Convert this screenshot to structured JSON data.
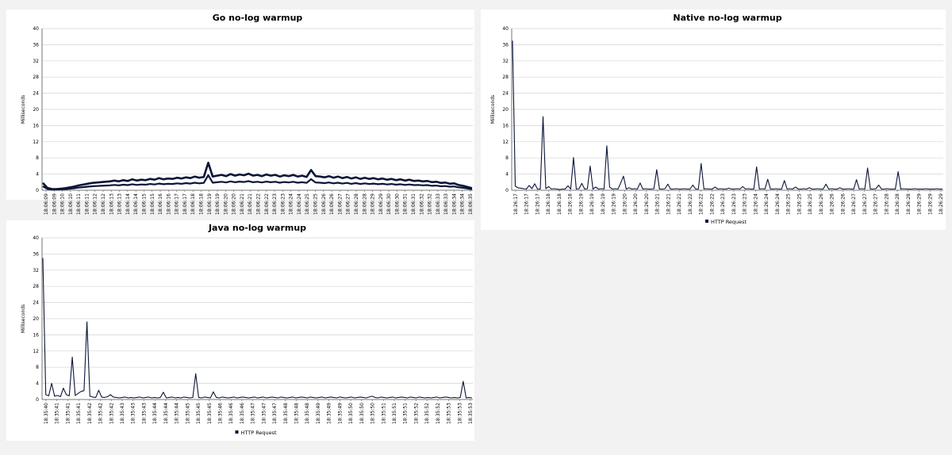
{
  "chart_data": [
    {
      "id": "go",
      "type": "line",
      "title": "Go no-log warmup",
      "ylabel": "Milliseconds",
      "ylim": [
        0,
        40
      ],
      "yticks": [
        0,
        4,
        8,
        12,
        16,
        20,
        24,
        28,
        32,
        36,
        40
      ],
      "grid": true,
      "xticks": [
        "18:06:09",
        "18:06:09",
        "18:06:10",
        "18:06:10",
        "18:06:11",
        "18:06:11",
        "18:06:12",
        "18:06:12",
        "18:06:13",
        "18:06:13",
        "18:06:14",
        "18:06:14",
        "18:06:15",
        "18:06:15",
        "18:06:16",
        "18:06:16",
        "18:06:17",
        "18:06:17",
        "18:06:18",
        "18:06:18",
        "18:06:19",
        "18:06:19",
        "18:06:20",
        "18:06:20",
        "18:06:21",
        "18:06:21",
        "18:06:22",
        "18:06:22",
        "18:06:23",
        "18:06:23",
        "18:06:24",
        "18:06:24",
        "18:06:25",
        "18:06:25",
        "18:06:26",
        "18:06:26",
        "18:06:27",
        "18:06:27",
        "18:06:28",
        "18:06:28",
        "18:06:29",
        "18:06:29",
        "18:06:30",
        "18:06:30",
        "18:06:31",
        "18:06:31",
        "18:06:32",
        "18:06:32",
        "18:06:33",
        "18:06:33",
        "18:06:34",
        "18:06:34",
        "18:06:35"
      ],
      "series": [
        {
          "name": "",
          "color": "#0b1538",
          "values": [
            1.8,
            0.6,
            0.3,
            0.3,
            0.4,
            0.5,
            0.7,
            0.9,
            1.2,
            1.4,
            1.6,
            1.8,
            1.9,
            2.0,
            2.1,
            2.2,
            2.4,
            2.2,
            2.5,
            2.3,
            2.7,
            2.4,
            2.6,
            2.5,
            2.8,
            2.6,
            3.0,
            2.7,
            2.9,
            2.8,
            3.1,
            2.9,
            3.2,
            3.0,
            3.4,
            3.1,
            3.3,
            6.8,
            3.4,
            3.6,
            3.8,
            3.5,
            4.0,
            3.6,
            3.9,
            3.7,
            4.1,
            3.6,
            3.8,
            3.5,
            3.9,
            3.6,
            3.8,
            3.4,
            3.7,
            3.5,
            3.8,
            3.4,
            3.6,
            3.3,
            5.0,
            3.5,
            3.4,
            3.2,
            3.5,
            3.1,
            3.4,
            3.0,
            3.3,
            2.9,
            3.2,
            2.8,
            3.1,
            2.8,
            3.0,
            2.7,
            2.9,
            2.6,
            2.8,
            2.5,
            2.7,
            2.4,
            2.6,
            2.3,
            2.4,
            2.2,
            2.3,
            2.0,
            2.1,
            1.8,
            1.9,
            1.6,
            1.7,
            1.3,
            1.1,
            0.8,
            0.5
          ]
        }
      ]
    },
    {
      "id": "native",
      "type": "line",
      "title": "Native no-log warmup",
      "ylabel": "Milliseconds",
      "ylim": [
        0,
        40
      ],
      "yticks": [
        0,
        4,
        8,
        12,
        16,
        20,
        24,
        28,
        32,
        36,
        40
      ],
      "grid": true,
      "legend": "HTTP Request",
      "legend_position": "bottom",
      "xticks": [
        "18:26:17",
        "18:26:17",
        "18:26:17",
        "18:26:18",
        "18:26:18",
        "18:26:18",
        "18:26:19",
        "18:26:19",
        "18:26:19",
        "18:26:19",
        "18:26:20",
        "18:26:20",
        "18:26:20",
        "18:26:21",
        "18:26:21",
        "18:26:21",
        "18:26:22",
        "18:26:22",
        "18:26:22",
        "18:26:23",
        "18:26:23",
        "18:26:23",
        "18:26:24",
        "18:26:24",
        "18:26:24",
        "18:26:25",
        "18:26:25",
        "18:26:25",
        "18:26:26",
        "18:26:26",
        "18:26:26",
        "18:26:27",
        "18:26:27",
        "18:26:27",
        "18:26:28",
        "18:26:28",
        "18:26:28",
        "18:26:29",
        "18:26:29",
        "18:26:29"
      ],
      "series": [
        {
          "name": "HTTP Request",
          "color": "#0b1538",
          "values": [
            37,
            1.0,
            0.6,
            0.5,
            0.4,
            0.3,
            1.2,
            0.4,
            1.6,
            0.3,
            0.3,
            18.2,
            0.4,
            0.9,
            0.3,
            0.4,
            0.3,
            0.2,
            0.3,
            0.3,
            1.1,
            0.3,
            8.1,
            0.3,
            0.4,
            1.7,
            0.3,
            0.4,
            6.0,
            0.3,
            0.8,
            0.3,
            0.4,
            0.3,
            11.0,
            0.8,
            0.3,
            0.4,
            0.3,
            1.8,
            3.5,
            0.3,
            0.6,
            0.3,
            0.4,
            0.3,
            1.8,
            0.3,
            0.4,
            0.3,
            0.3,
            0.4,
            5.1,
            0.3,
            0.3,
            0.4,
            1.5,
            0.3,
            0.3,
            0.4,
            0.3,
            0.3,
            0.4,
            0.3,
            0.3,
            1.3,
            0.3,
            0.3,
            6.6,
            0.3,
            0.4,
            0.3,
            0.3,
            0.8,
            0.3,
            0.4,
            0.3,
            0.3,
            0.5,
            0.3,
            0.3,
            0.4,
            0.3,
            0.9,
            0.3,
            0.4,
            0.3,
            0.3,
            5.8,
            0.3,
            0.4,
            0.3,
            2.7,
            0.3,
            0.3,
            0.4,
            0.3,
            0.3,
            2.4,
            0.3,
            0.4,
            0.3,
            0.8,
            0.3,
            0.3,
            0.4,
            0.3,
            0.6,
            0.3,
            0.3,
            0.4,
            0.3,
            0.3,
            1.5,
            0.3,
            0.4,
            0.3,
            0.3,
            0.6,
            0.3,
            0.3,
            0.4,
            0.3,
            0.3,
            2.6,
            0.3,
            0.4,
            0.3,
            5.5,
            0.3,
            0.3,
            0.4,
            1.3,
            0.3,
            0.3,
            0.4,
            0.3,
            0.3,
            0.3,
            4.6,
            0.3,
            0.4,
            0.3,
            0.3,
            0.3,
            0.4,
            0.3,
            0.3,
            0.3,
            0.4,
            0.3,
            0.3,
            0.3,
            0.4,
            0.3,
            0.3
          ]
        }
      ]
    },
    {
      "id": "java",
      "type": "line",
      "title": "Java no-log warmup",
      "ylabel": "Milliseconds",
      "ylim": [
        0,
        40
      ],
      "yticks": [
        0,
        4,
        8,
        12,
        16,
        20,
        24,
        28,
        32,
        36,
        40
      ],
      "grid": true,
      "legend": "HTTP Request",
      "legend_position": "bottom",
      "xticks": [
        "18:35:40",
        "18:35:41",
        "18:35:41",
        "18:35:41",
        "18:35:42",
        "18:35:42",
        "18:35:42",
        "18:35:43",
        "18:35:43",
        "18:35:43",
        "18:35:44",
        "18:35:44",
        "18:35:44",
        "18:35:45",
        "18:35:45",
        "18:35:45",
        "18:35:46",
        "18:35:46",
        "18:35:46",
        "18:35:47",
        "18:35:47",
        "18:35:47",
        "18:35:48",
        "18:35:48",
        "18:35:48",
        "18:35:49",
        "18:35:49",
        "18:35:49",
        "18:35:50",
        "18:35:50",
        "18:35:50",
        "18:35:51",
        "18:35:51",
        "18:35:51",
        "18:35:52",
        "18:35:52",
        "18:35:52",
        "18:35:53",
        "18:35:53",
        "18:35:53"
      ],
      "series": [
        {
          "name": "HTTP Request",
          "color": "#0b1538",
          "values": [
            35,
            1.2,
            0.9,
            4.0,
            0.8,
            1.0,
            0.7,
            2.8,
            1.2,
            0.9,
            10.5,
            1.0,
            1.5,
            2.0,
            2.2,
            19.2,
            0.8,
            0.6,
            0.5,
            2.3,
            0.6,
            0.5,
            0.7,
            1.2,
            0.6,
            0.5,
            0.4,
            0.5,
            0.6,
            0.4,
            0.5,
            0.4,
            0.5,
            0.6,
            0.4,
            0.5,
            0.6,
            0.4,
            0.5,
            0.4,
            0.5,
            1.8,
            0.4,
            0.5,
            0.6,
            0.4,
            0.5,
            0.4,
            0.6,
            0.5,
            0.4,
            0.5,
            6.4,
            0.5,
            0.4,
            0.6,
            0.5,
            0.4,
            1.9,
            0.5,
            0.4,
            0.6,
            0.5,
            0.4,
            0.5,
            0.6,
            0.4,
            0.5,
            0.6,
            0.5,
            0.4,
            0.5,
            0.6,
            0.4,
            0.5,
            0.6,
            0.4,
            0.5,
            0.6,
            0.5,
            0.4,
            0.6,
            0.5,
            0.4,
            0.5,
            0.6,
            0.4,
            0.5,
            0.6,
            0.5,
            0.4,
            0.6,
            0.5,
            0.4,
            0.5,
            0.6,
            0.4,
            0.5,
            0.6,
            0.5,
            0.4,
            0.6,
            0.5,
            0.4,
            0.5,
            0.6,
            0.4,
            0.5,
            0.6,
            0.5,
            0.4,
            0.6,
            0.8,
            0.5,
            0.4,
            0.6,
            0.5,
            0.4,
            0.5,
            0.6,
            0.4,
            0.5,
            0.6,
            0.5,
            0.4,
            0.6,
            0.5,
            0.4,
            0.6,
            0.5,
            0.4,
            0.5,
            0.4,
            0.5,
            0.6,
            0.4,
            0.5,
            0.6,
            0.5,
            0.4,
            0.5,
            0.4,
            0.5,
            4.5,
            0.4,
            0.5,
            0.4
          ]
        }
      ]
    }
  ]
}
